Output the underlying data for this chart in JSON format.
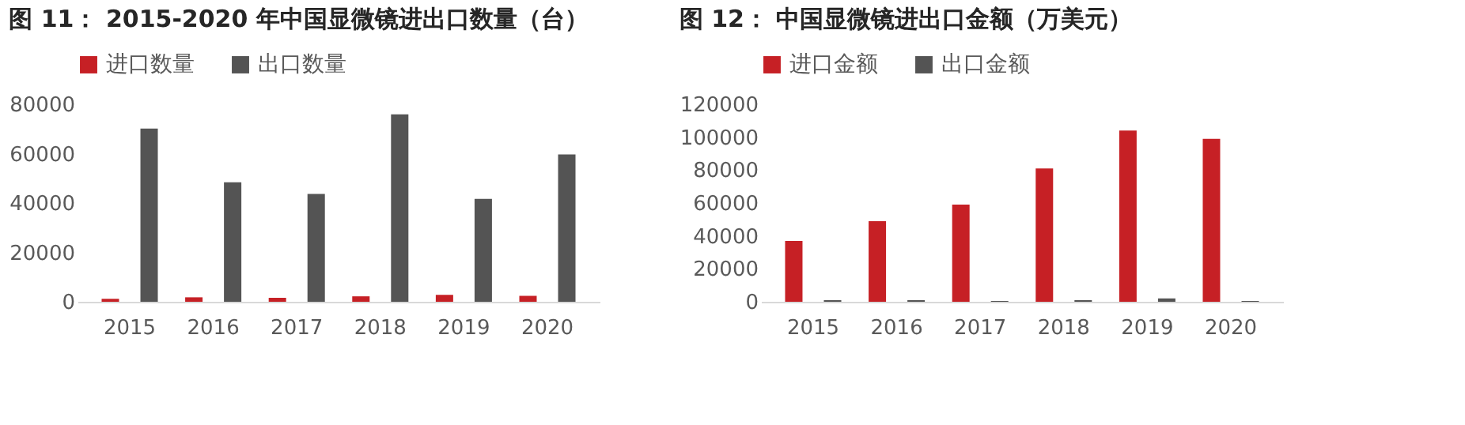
{
  "chart_data": [
    {
      "type": "bar",
      "title": "图 11： 2015-2020 年中国显微镜进出口数量（台）",
      "categories": [
        "2015",
        "2016",
        "2017",
        "2018",
        "2019",
        "2020"
      ],
      "series": [
        {
          "name": "进口数量",
          "color": "#c62025",
          "values": [
            1200,
            1800,
            1600,
            2200,
            2800,
            2400
          ]
        },
        {
          "name": "出口数量",
          "color": "#545454",
          "values": [
            70200,
            48400,
            43700,
            75900,
            41700,
            59700
          ]
        }
      ],
      "ylim": [
        0,
        80000
      ],
      "yticks": [
        0,
        20000,
        40000,
        60000,
        80000
      ],
      "grid": false,
      "legend": "top"
    },
    {
      "type": "bar",
      "title": "图 12： 中国显微镜进出口金额（万美元）",
      "categories": [
        "2015",
        "2016",
        "2017",
        "2018",
        "2019",
        "2020"
      ],
      "series": [
        {
          "name": "进口金额",
          "color": "#c62025",
          "values": [
            37000,
            49000,
            59000,
            81000,
            104000,
            99000
          ]
        },
        {
          "name": "出口金额",
          "color": "#545454",
          "values": [
            1000,
            1000,
            500,
            1000,
            2000,
            500
          ]
        }
      ],
      "ylim": [
        0,
        120000
      ],
      "yticks": [
        0,
        20000,
        40000,
        60000,
        80000,
        100000,
        120000
      ],
      "grid": false,
      "legend": "top"
    }
  ]
}
